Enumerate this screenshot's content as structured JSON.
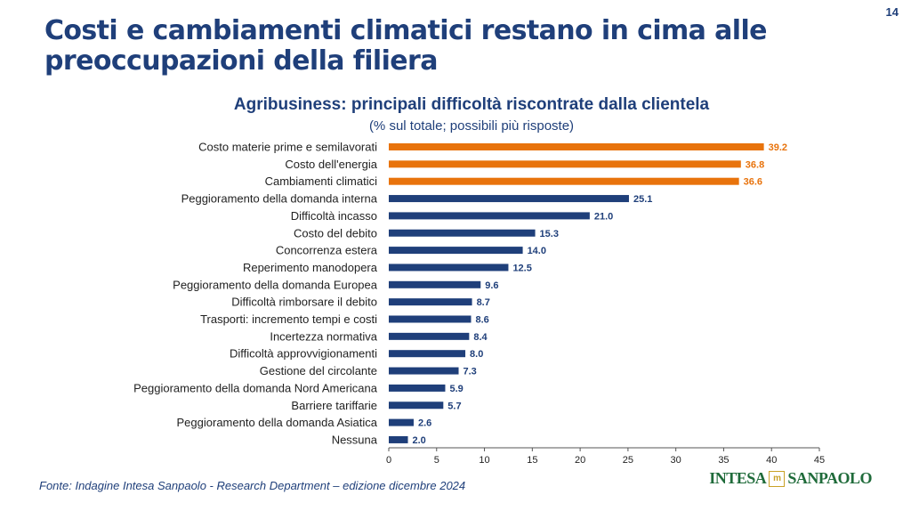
{
  "page_number": "14",
  "title": "Costi e cambiamenti climatici restano in cima alle preoccupazioni della filiera",
  "source": "Fonte: Indagine Intesa Sanpaolo - Research Department – edizione dicembre 2024",
  "logo": {
    "left": "INTESA",
    "right": "SANPAOLO",
    "mark": "m"
  },
  "colors": {
    "highlight": "#e8730c",
    "bar": "#1f3f7a",
    "text": "#1f3f7a"
  },
  "chart_data": {
    "type": "bar",
    "orientation": "horizontal",
    "title": "Agribusiness: principali difficoltà riscontrate dalla clientela",
    "subtitle": "(% sul totale; possibili più risposte)",
    "categories": [
      "Costo materie prime e semilavorati",
      "Costo dell'energia",
      "Cambiamenti climatici",
      "Peggioramento della domanda interna",
      "Difficoltà incasso",
      "Costo del debito",
      "Concorrenza estera",
      "Reperimento manodopera",
      "Peggioramento della domanda Europea",
      "Difficoltà rimborsare il debito",
      "Trasporti: incremento tempi e costi",
      "Incertezza normativa",
      "Difficoltà approvvigionamenti",
      "Gestione del circolante",
      "Peggioramento della domanda Nord Americana",
      "Barriere tariffarie",
      "Peggioramento della domanda Asiatica",
      "Nessuna"
    ],
    "values": [
      39.2,
      36.8,
      36.6,
      25.1,
      21.0,
      15.3,
      14.0,
      12.5,
      9.6,
      8.7,
      8.6,
      8.4,
      8.0,
      7.3,
      5.9,
      5.7,
      2.6,
      2.0
    ],
    "value_labels": [
      "39.2",
      "36.8",
      "36.6",
      "25.1",
      "21.0",
      "15.3",
      "14.0",
      "12.5",
      "9.6",
      "8.7",
      "8.6",
      "8.4",
      "8.0",
      "7.3",
      "5.9",
      "5.7",
      "2.6",
      "2.0"
    ],
    "highlighted_count": 3,
    "xlim": [
      0,
      45
    ],
    "xticks": [
      0,
      5,
      10,
      15,
      20,
      25,
      30,
      35,
      40,
      45
    ],
    "grid": false
  }
}
